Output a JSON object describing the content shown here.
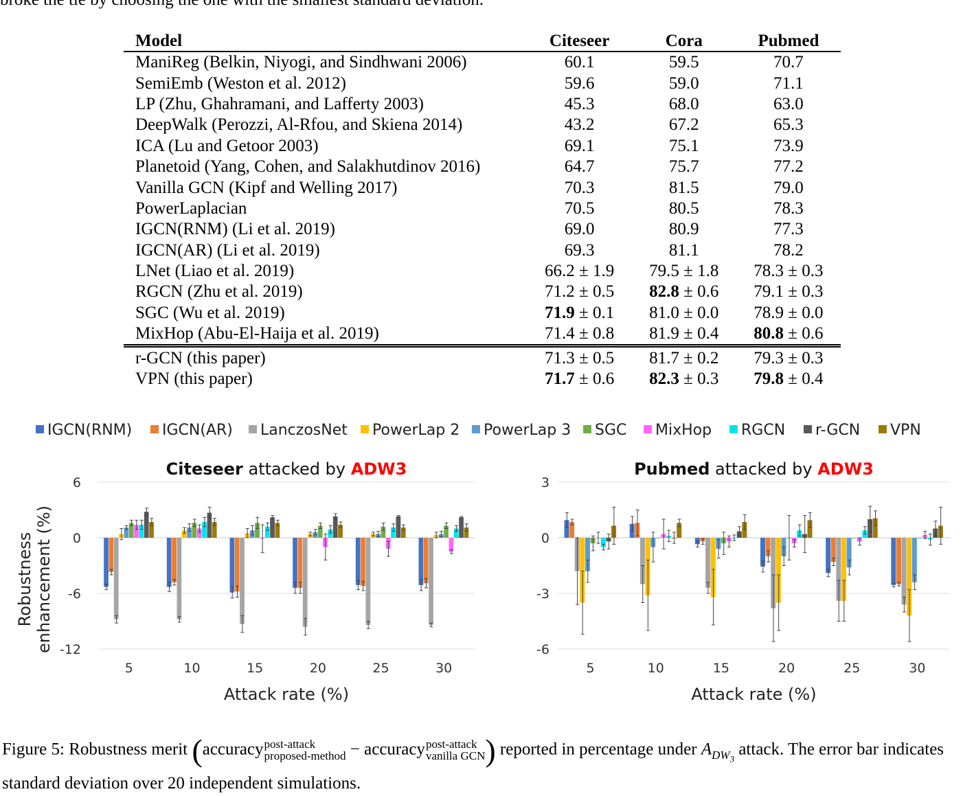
{
  "top_text": "broke the tie by choosing the one with the smallest standard deviation.",
  "table": {
    "headers": [
      "Model",
      "Citeseer",
      "Cora",
      "Pubmed"
    ],
    "rows": [
      {
        "model": "ManiReg (Belkin, Niyogi, and Sindhwani 2006)",
        "citeseer": "60.1",
        "cora": "59.5",
        "pubmed": "70.7"
      },
      {
        "model": "SemiEmb (Weston et al. 2012)",
        "citeseer": "59.6",
        "cora": "59.0",
        "pubmed": "71.1"
      },
      {
        "model": "LP (Zhu, Ghahramani, and Lafferty 2003)",
        "citeseer": "45.3",
        "cora": "68.0",
        "pubmed": "63.0"
      },
      {
        "model": "DeepWalk (Perozzi, Al-Rfou, and Skiena 2014)",
        "citeseer": "43.2",
        "cora": "67.2",
        "pubmed": "65.3"
      },
      {
        "model": "ICA (Lu and Getoor 2003)",
        "citeseer": "69.1",
        "cora": "75.1",
        "pubmed": "73.9"
      },
      {
        "model": "Planetoid (Yang, Cohen, and Salakhutdinov 2016)",
        "citeseer": "64.7",
        "cora": "75.7",
        "pubmed": "77.2"
      },
      {
        "model": "Vanilla GCN (Kipf and Welling 2017)",
        "citeseer": "70.3",
        "cora": "81.5",
        "pubmed": "79.0"
      },
      {
        "model": "PowerLaplacian",
        "citeseer": "70.5",
        "cora": "80.5",
        "pubmed": "78.3"
      },
      {
        "model": "IGCN(RNM) (Li et al. 2019)",
        "citeseer": "69.0",
        "cora": "80.9",
        "pubmed": "77.3"
      },
      {
        "model": "IGCN(AR) (Li et al. 2019)",
        "citeseer": "69.3",
        "cora": "81.1",
        "pubmed": "78.2"
      },
      {
        "model": "LNet (Liao et al. 2019)",
        "citeseer": "66.2 ± 1.9",
        "cora": "79.5 ± 1.8",
        "pubmed": "78.3 ± 0.3"
      },
      {
        "model": "RGCN (Zhu et al. 2019)",
        "citeseer": "71.2 ± 0.5",
        "cora_b": "82.8",
        "cora": " ± 0.6",
        "pubmed": "79.1 ± 0.3"
      },
      {
        "model": "SGC (Wu et al. 2019)",
        "citeseer_b": "71.9",
        "citeseer": " ± 0.1",
        "cora": "81.0 ± 0.0",
        "pubmed": "78.9 ± 0.0"
      },
      {
        "model": "MixHop (Abu-El-Haija et al. 2019)",
        "citeseer": "71.4 ± 0.8",
        "cora": "81.9 ± 0.4",
        "pubmed_b": "80.8",
        "pubmed": " ± 0.6"
      },
      {
        "model": "r-GCN (this paper)",
        "citeseer": "71.3 ± 0.5",
        "cora": "81.7 ± 0.2",
        "pubmed": "79.3 ± 0.3"
      },
      {
        "model": "VPN (this paper)",
        "citeseer_b": "71.7",
        "citeseer": " ± 0.6",
        "cora_b": "82.3",
        "cora": " ± 0.3",
        "pubmed_b": "79.8",
        "pubmed": " ± 0.4"
      }
    ]
  },
  "legend": [
    {
      "name": "IGCN(RNM)",
      "color": "#4472c4"
    },
    {
      "name": "IGCN(AR)",
      "color": "#ed7d31"
    },
    {
      "name": "LanczosNet",
      "color": "#a5a5a5"
    },
    {
      "name": "PowerLap 2",
      "color": "#ffc000"
    },
    {
      "name": "PowerLap 3",
      "color": "#5b9bd5"
    },
    {
      "name": "SGC",
      "color": "#70ad47"
    },
    {
      "name": "MixHop",
      "color": "#ff66ff"
    },
    {
      "name": "RGCN",
      "color": "#00e5ee"
    },
    {
      "name": "r-GCN",
      "color": "#595959"
    },
    {
      "name": "VPN",
      "color": "#9c7a0a"
    }
  ],
  "chart_data": [
    {
      "type": "bar",
      "title_bold": "Citeseer",
      "title_mid": " attacked by ",
      "title_red": "ADW3",
      "title_red_color": "#ff0000",
      "xlabel": "Attack rate (%)",
      "ylabel": "Robustness enhancement (%)",
      "ylabel_lines": [
        "Robustness",
        "enhancement (%)"
      ],
      "ylim": [
        -12,
        6
      ],
      "yticks": [
        "6",
        "0",
        "-6",
        "-12"
      ],
      "categories": [
        "5",
        "10",
        "15",
        "20",
        "25",
        "30"
      ],
      "series": [
        {
          "name": "IGCN(RNM)",
          "values": [
            -5.3,
            -5.3,
            -5.9,
            -5.4,
            -5.1,
            -5.1
          ],
          "err": [
            0.3,
            0.5,
            0.6,
            0.6,
            0.5,
            0.6
          ]
        },
        {
          "name": "IGCN(AR)",
          "values": [
            -3.7,
            -4.8,
            -5.8,
            -5.4,
            -5.2,
            -4.9
          ],
          "err": [
            0.3,
            0.3,
            0.6,
            0.6,
            0.5,
            0.5
          ]
        },
        {
          "name": "LanczosNet",
          "values": [
            -8.8,
            -8.8,
            -9.3,
            -9.6,
            -9.4,
            -9.4
          ],
          "err": [
            0.4,
            0.3,
            0.9,
            0.9,
            0.4,
            0.2
          ]
        },
        {
          "name": "PowerLap 2",
          "values": [
            0.4,
            0.8,
            0.5,
            0.4,
            0.4,
            0.3
          ],
          "err": [
            0.6,
            0.3,
            0.5,
            0.2,
            0.2,
            0.3
          ]
        },
        {
          "name": "PowerLap 3",
          "values": [
            1.1,
            1.1,
            0.8,
            0.6,
            0.4,
            0.4
          ],
          "err": [
            0.2,
            0.4,
            0.5,
            0.3,
            0.3,
            0.3
          ]
        },
        {
          "name": "SGC",
          "values": [
            1.6,
            1.6,
            1.6,
            1.3,
            1.2,
            1.3
          ],
          "err": [
            0.3,
            0.4,
            0.6,
            0.3,
            0.4,
            0.3
          ]
        },
        {
          "name": "MixHop",
          "values": [
            1.4,
            1.0,
            -0.1,
            -1.0,
            -1.2,
            -1.5
          ],
          "err": [
            0.5,
            0.4,
            1.5,
            1.4,
            0.8,
            0.2
          ]
        },
        {
          "name": "RGCN",
          "values": [
            1.4,
            1.7,
            1.2,
            0.9,
            1.1,
            1.0
          ],
          "err": [
            0.5,
            0.5,
            0.4,
            0.4,
            0.4,
            0.3
          ]
        },
        {
          "name": "r-GCN",
          "values": [
            2.8,
            2.7,
            2.2,
            2.3,
            2.3,
            2.2
          ],
          "err": [
            0.4,
            0.6,
            0.2,
            0.3,
            0.1,
            0.1
          ]
        },
        {
          "name": "VPN",
          "values": [
            1.7,
            1.7,
            1.6,
            1.4,
            1.1,
            1.1
          ],
          "err": [
            0.4,
            0.4,
            0.3,
            0.3,
            0.3,
            0.4
          ]
        }
      ]
    },
    {
      "type": "bar",
      "title_bold": "Pubmed",
      "title_mid": " attacked by ",
      "title_red": "ADW3",
      "title_red_color": "#ff0000",
      "xlabel": "Attack rate (%)",
      "ylim": [
        -6,
        3
      ],
      "yticks": [
        "3",
        "0",
        "-3",
        "-6"
      ],
      "categories": [
        "5",
        "10",
        "15",
        "20",
        "25",
        "30"
      ],
      "series": [
        {
          "name": "IGCN(RNM)",
          "values": [
            0.95,
            0.75,
            -0.35,
            -1.55,
            -1.9,
            -2.55
          ],
          "err": [
            0.4,
            0.4,
            0.15,
            0.3,
            0.2,
            0.1
          ]
        },
        {
          "name": "IGCN(AR)",
          "values": [
            0.85,
            0.8,
            -0.2,
            -1.0,
            -1.3,
            -2.5
          ],
          "err": [
            0.15,
            0.7,
            0.15,
            0.3,
            0.2,
            0.1
          ]
        },
        {
          "name": "LanczosNet",
          "values": [
            -1.8,
            -2.5,
            -2.7,
            -3.8,
            -3.4,
            -3.6
          ],
          "err": [
            1.8,
            1.0,
            0.3,
            1.8,
            1.1,
            0.4
          ]
        },
        {
          "name": "PowerLap 2",
          "values": [
            -3.5,
            -3.1,
            -3.2,
            -3.5,
            -3.4,
            -4.2
          ],
          "err": [
            1.7,
            1.9,
            1.5,
            1.5,
            1.1,
            1.4
          ]
        },
        {
          "name": "PowerLap 3",
          "values": [
            -1.8,
            -0.5,
            -0.6,
            -1.0,
            -1.6,
            -2.4
          ],
          "err": [
            0.6,
            0.8,
            0.5,
            0.5,
            0.4,
            0.4
          ]
        },
        {
          "name": "SGC",
          "values": [
            -0.3,
            0.0,
            -0.3,
            0.0,
            0.0,
            0.0
          ],
          "err": [
            0.4,
            0.0,
            0.6,
            1.2,
            0.0,
            0.0
          ]
        },
        {
          "name": "MixHop",
          "values": [
            0.0,
            0.2,
            -0.2,
            -0.3,
            -0.2,
            0.15
          ],
          "err": [
            0.3,
            0.8,
            0.3,
            0.2,
            0.2,
            0.2
          ]
        },
        {
          "name": "RGCN",
          "values": [
            -0.5,
            0.1,
            0.0,
            0.4,
            0.4,
            -0.1
          ],
          "err": [
            0.15,
            0.3,
            0.15,
            0.3,
            0.2,
            0.3
          ]
        },
        {
          "name": "r-GCN",
          "values": [
            -0.2,
            0.0,
            0.35,
            0.2,
            1.0,
            0.5
          ],
          "err": [
            0.4,
            0.3,
            0.25,
            1.0,
            0.7,
            0.4
          ]
        },
        {
          "name": "VPN",
          "values": [
            0.65,
            0.8,
            0.85,
            0.95,
            1.05,
            0.65
          ],
          "err": [
            1.0,
            0.2,
            0.4,
            0.4,
            0.4,
            1.0
          ]
        }
      ]
    }
  ],
  "caption": {
    "lead": "Figure 5: Robustness merit ",
    "acc1": "accuracy",
    "acc1_sup": "post-attack",
    "acc1_sub": "proposed-method",
    "minus": " − ",
    "acc2": "accuracy",
    "acc2_sup": "post-attack",
    "acc2_sub": "vanilla GCN",
    "mid": " reported in percentage under ",
    "attack_symbol": "A",
    "attack_sub": "DW",
    "attack_subsub": "3",
    "tail": " attack. The error bar indicates standard deviation over 20 independent simulations."
  }
}
